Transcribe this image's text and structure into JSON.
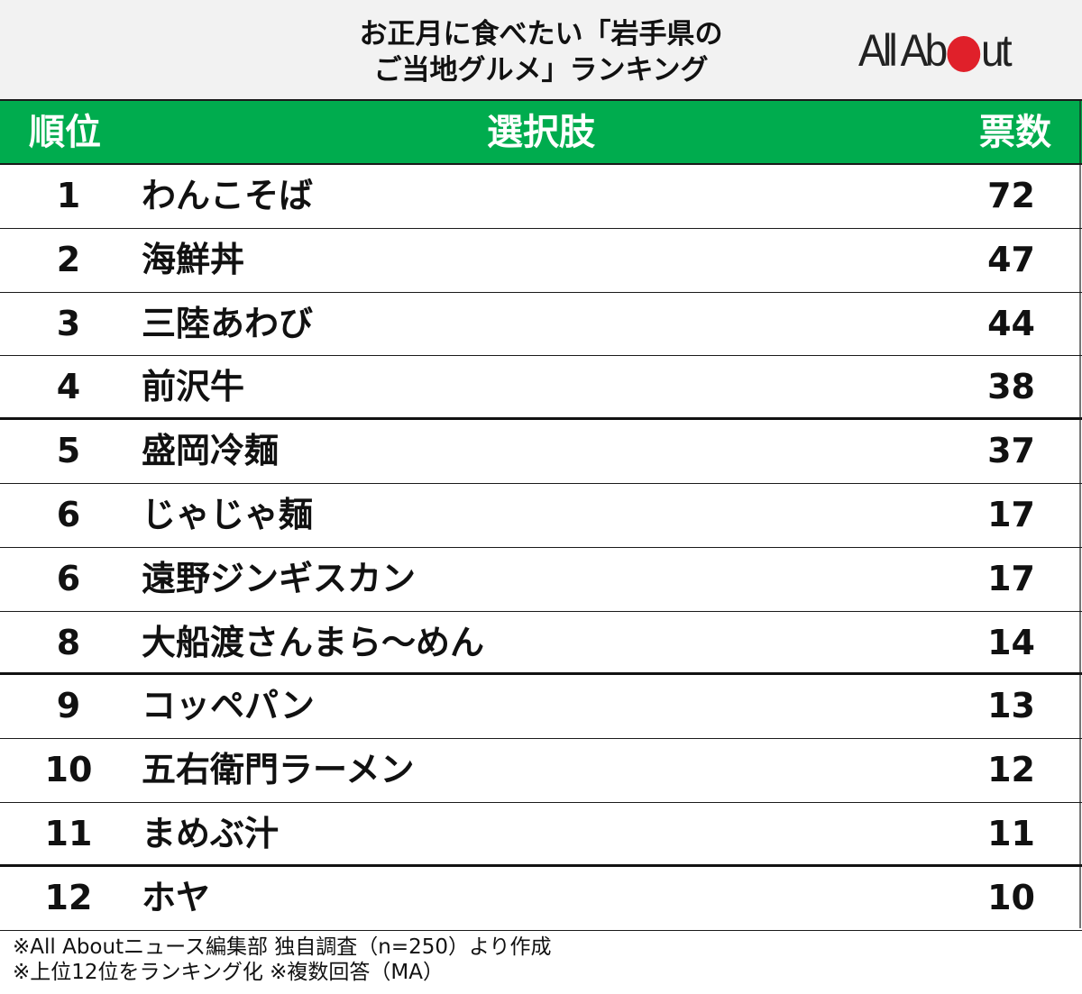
{
  "title": {
    "line1": "お正月に食べたい「岩手県の",
    "line2": "ご当地グルメ」ランキング"
  },
  "logo": {
    "text_before": "All Ab",
    "text_after": "ut",
    "dot_color": "#e0202a"
  },
  "colors": {
    "header_green": "#00ac4e",
    "title_band": "#f2f2f2",
    "text": "#111111"
  },
  "table": {
    "headers": {
      "rank": "順位",
      "option": "選択肢",
      "votes": "票数"
    },
    "rows": [
      {
        "rank": "1",
        "option": "わんこそば",
        "votes": "72"
      },
      {
        "rank": "2",
        "option": "海鮮丼",
        "votes": "47"
      },
      {
        "rank": "3",
        "option": "三陸あわび",
        "votes": "44"
      },
      {
        "rank": "4",
        "option": "前沢牛",
        "votes": "38"
      },
      {
        "rank": "5",
        "option": "盛岡冷麺",
        "votes": "37"
      },
      {
        "rank": "6",
        "option": "じゃじゃ麺",
        "votes": "17"
      },
      {
        "rank": "6",
        "option": "遠野ジンギスカン",
        "votes": "17"
      },
      {
        "rank": "8",
        "option": "大船渡さんまら～めん",
        "votes": "14"
      },
      {
        "rank": "9",
        "option": "コッペパン",
        "votes": "13"
      },
      {
        "rank": "10",
        "option": "五右衛門ラーメン",
        "votes": "12"
      },
      {
        "rank": "11",
        "option": "まめぶ汁",
        "votes": "11"
      },
      {
        "rank": "12",
        "option": "ホヤ",
        "votes": "10"
      }
    ]
  },
  "notes": {
    "line1": "※All Aboutニュース編集部 独自調査（n=250）より作成",
    "line2": "※上位12位をランキング化 ※複数回答（MA）"
  },
  "chart_data": {
    "type": "table",
    "title": "お正月に食べたい「岩手県のご当地グルメ」ランキング",
    "columns": [
      "順位",
      "選択肢",
      "票数"
    ],
    "categories": [
      "わんこそば",
      "海鮮丼",
      "三陸あわび",
      "前沢牛",
      "盛岡冷麺",
      "じゃじゃ麺",
      "遠野ジンギスカン",
      "大船渡さんまら～めん",
      "コッペパン",
      "五右衛門ラーメン",
      "まめぶ汁",
      "ホヤ"
    ],
    "ranks": [
      1,
      2,
      3,
      4,
      5,
      6,
      6,
      8,
      9,
      10,
      11,
      12
    ],
    "values": [
      72,
      47,
      44,
      38,
      37,
      17,
      17,
      14,
      13,
      12,
      11,
      10
    ],
    "n": 250,
    "notes": [
      "※All Aboutニュース編集部 独自調査（n=250）より作成",
      "※上位12位をランキング化 ※複数回答（MA）"
    ]
  }
}
